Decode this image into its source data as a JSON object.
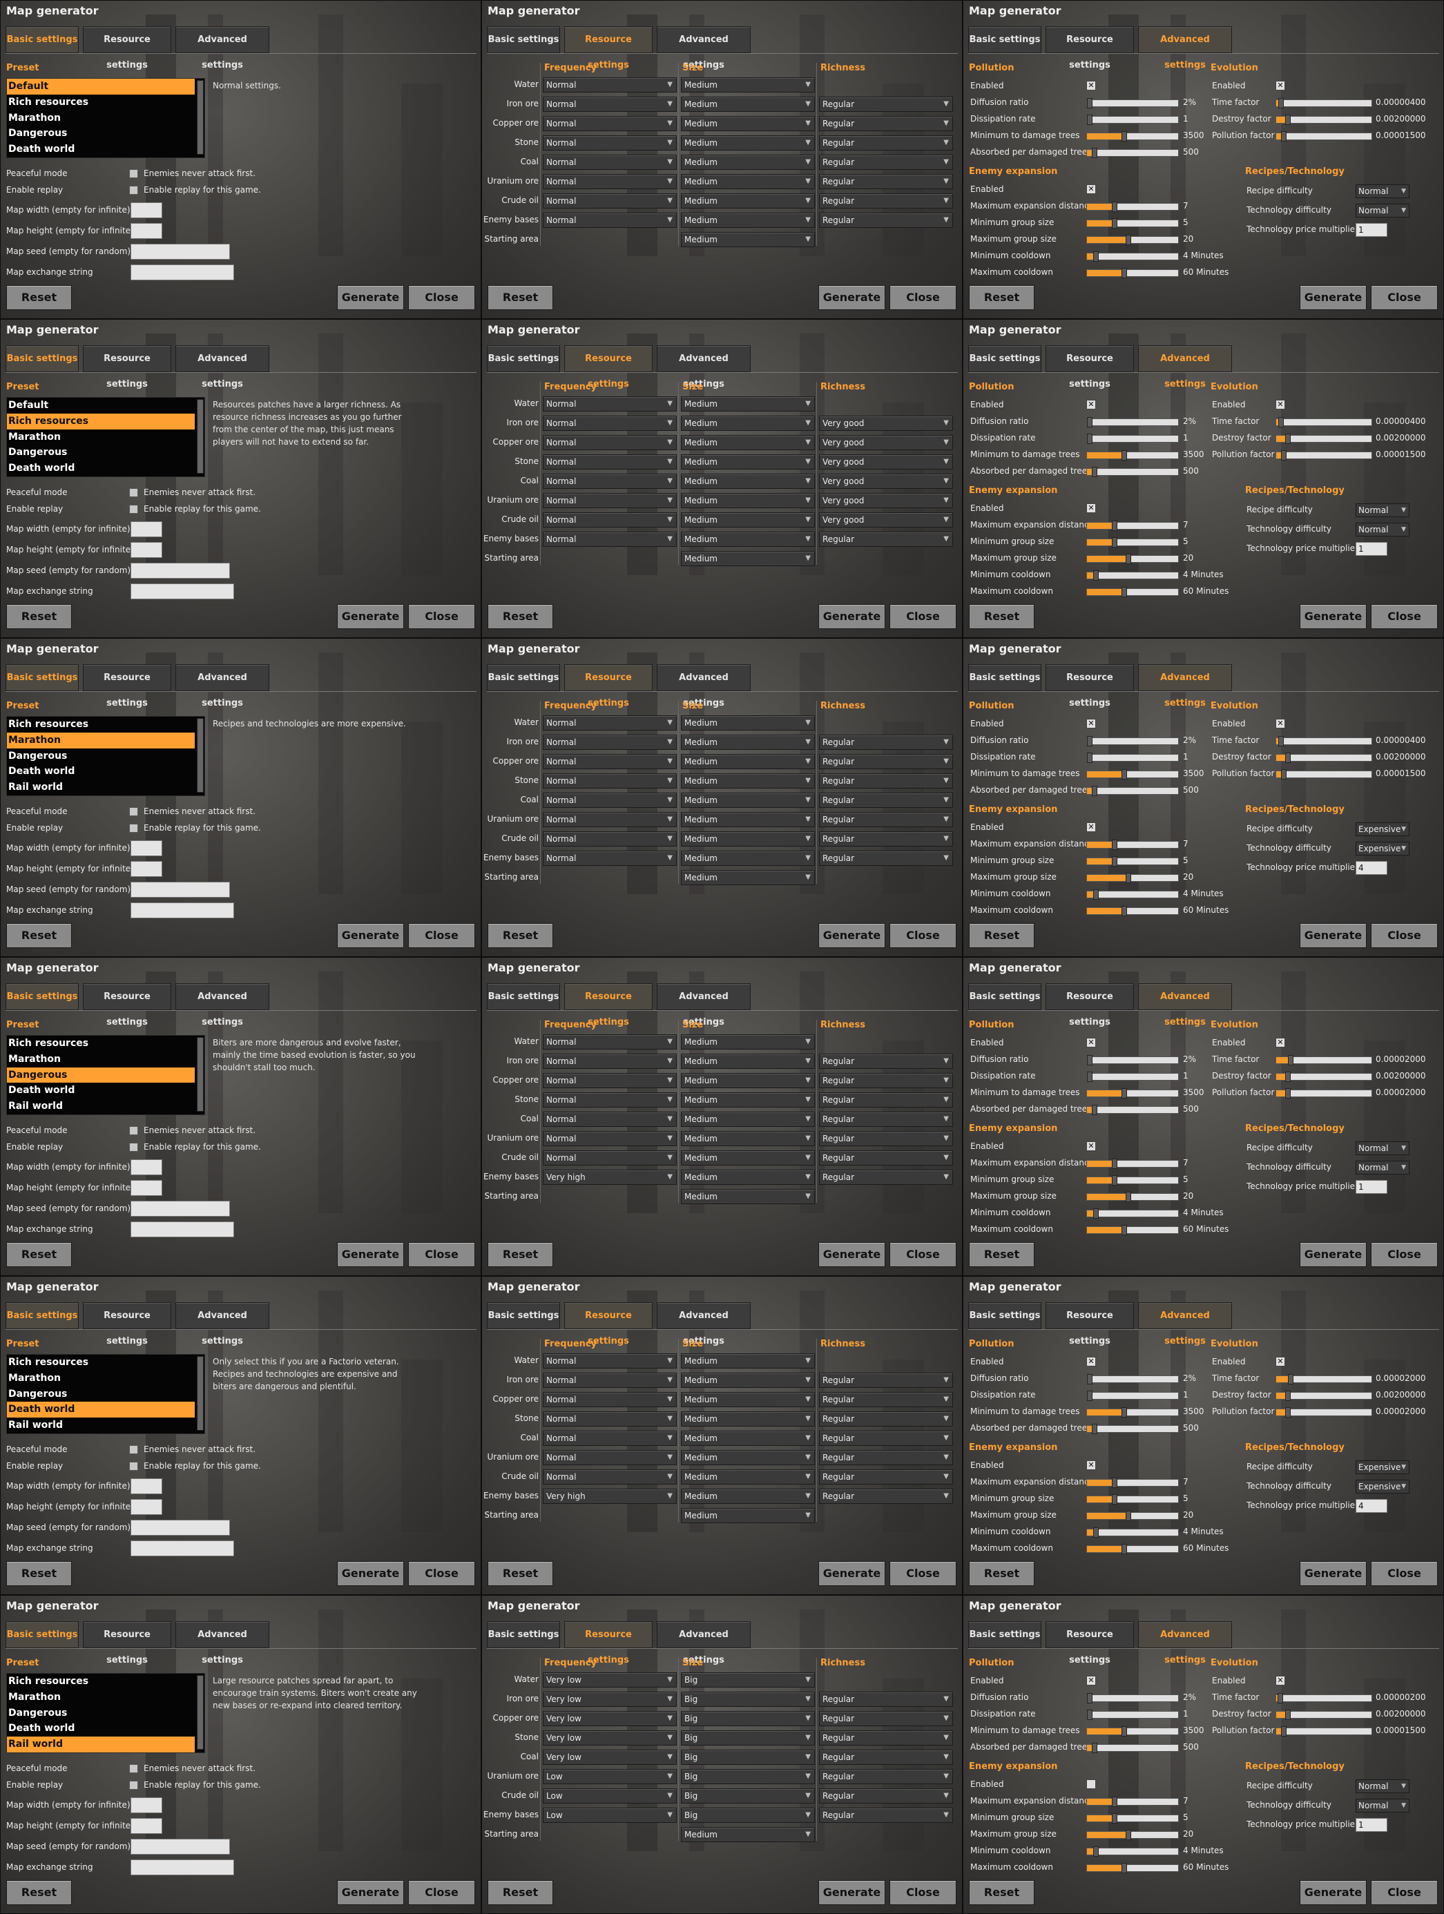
{
  "common": {
    "window_title": "Map generator",
    "tabs": [
      "Basic settings",
      "Resource settings",
      "Advanced settings"
    ],
    "buttons": {
      "reset": "Reset",
      "generate": "Generate",
      "close": "Close"
    },
    "basic": {
      "preset_heading": "Preset",
      "options": [
        {
          "label": "Peaceful mode",
          "check_label": "Enemies never attack first."
        },
        {
          "label": "Enable replay",
          "check_label": "Enable replay for this game."
        }
      ],
      "fields": [
        "Map width (empty for infinite):",
        "Map height (empty for infinite):",
        "Map seed (empty for random):",
        "Map exchange string"
      ]
    },
    "resource": {
      "headers": {
        "frequency": "Frequency",
        "size": "Size",
        "richness": "Richness"
      },
      "rows": [
        "Water",
        "Iron ore",
        "Copper ore",
        "Stone",
        "Coal",
        "Uranium ore",
        "Crude oil",
        "Enemy bases",
        "Starting area"
      ]
    },
    "advanced": {
      "pollution_heading": "Pollution",
      "pollution_labels": [
        "Enabled",
        "Diffusion ratio",
        "Dissipation rate",
        "Minimum to damage trees",
        "Absorbed per damaged tree"
      ],
      "expansion_heading": "Enemy expansion",
      "expansion_labels": [
        "Enabled",
        "Maximum expansion distance",
        "Minimum group size",
        "Maximum group size",
        "Minimum cooldown",
        "Maximum cooldown"
      ],
      "evolution_heading": "Evolution",
      "evolution_labels": [
        "Enabled",
        "Time factor",
        "Destroy factor",
        "Pollution factor"
      ],
      "recipes_heading": "Recipes/Technology",
      "recipes_labels": [
        "Recipe difficulty",
        "Technology difficulty",
        "Technology price multiplier"
      ]
    },
    "icons": {
      "checkmark": "x-checkbox-icon",
      "dropdown": "chevron-down-icon"
    },
    "colors": {
      "accent": "#ffa033",
      "panel": "#3c3c3c",
      "button": "#8a8a8a"
    }
  },
  "rows": [
    {
      "basic": {
        "presets": [
          "Default",
          "Rich resources",
          "Marathon",
          "Dangerous",
          "Death world"
        ],
        "selected": 0,
        "description": "Normal settings."
      },
      "resource": {
        "frequency": [
          "Normal",
          "Normal",
          "Normal",
          "Normal",
          "Normal",
          "Normal",
          "Normal",
          "Normal"
        ],
        "size": [
          "Medium",
          "Medium",
          "Medium",
          "Medium",
          "Medium",
          "Medium",
          "Medium",
          "Medium",
          "Medium"
        ],
        "richness": [
          "",
          "Regular",
          "Regular",
          "Regular",
          "Regular",
          "Regular",
          "Regular",
          "Regular"
        ]
      },
      "advanced": {
        "pollution_enabled": true,
        "pollution_values": [
          "2%",
          "1",
          "3500",
          "500"
        ],
        "pollution_levels": [
          0.03,
          0.03,
          0.4,
          0.08
        ],
        "expansion_enabled": true,
        "expansion_values": [
          "7",
          "5",
          "20",
          "4 Minutes",
          "60 Minutes"
        ],
        "expansion_levels": [
          0.3,
          0.3,
          0.45,
          0.1,
          0.4
        ],
        "evolution_enabled": true,
        "evolution_values": [
          "0.00000400",
          "0.00200000",
          "0.00001500"
        ],
        "evolution_levels": [
          0.05,
          0.12,
          0.08
        ],
        "recipe_difficulty": "Normal",
        "technology_difficulty": "Normal",
        "price_multiplier": "1"
      }
    },
    {
      "basic": {
        "presets": [
          "Default",
          "Rich resources",
          "Marathon",
          "Dangerous",
          "Death world"
        ],
        "selected": 1,
        "description": "Resources patches have a larger richness. As resource richness increases as you go further from the center of the map, this just means players will not have to extend so far."
      },
      "resource": {
        "frequency": [
          "Normal",
          "Normal",
          "Normal",
          "Normal",
          "Normal",
          "Normal",
          "Normal",
          "Normal"
        ],
        "size": [
          "Medium",
          "Medium",
          "Medium",
          "Medium",
          "Medium",
          "Medium",
          "Medium",
          "Medium",
          "Medium"
        ],
        "richness": [
          "",
          "Very good",
          "Very good",
          "Very good",
          "Very good",
          "Very good",
          "Very good",
          "Regular"
        ]
      },
      "advanced": {
        "pollution_enabled": true,
        "pollution_values": [
          "2%",
          "1",
          "3500",
          "500"
        ],
        "pollution_levels": [
          0.03,
          0.03,
          0.4,
          0.08
        ],
        "expansion_enabled": true,
        "expansion_values": [
          "7",
          "5",
          "20",
          "4 Minutes",
          "60 Minutes"
        ],
        "expansion_levels": [
          0.3,
          0.3,
          0.45,
          0.1,
          0.4
        ],
        "evolution_enabled": true,
        "evolution_values": [
          "0.00000400",
          "0.00200000",
          "0.00001500"
        ],
        "evolution_levels": [
          0.05,
          0.12,
          0.08
        ],
        "recipe_difficulty": "Normal",
        "technology_difficulty": "Normal",
        "price_multiplier": "1"
      }
    },
    {
      "basic": {
        "presets": [
          "Rich resources",
          "Marathon",
          "Dangerous",
          "Death world",
          "Rail world"
        ],
        "selected": 1,
        "description": "Recipes and technologies are more expensive."
      },
      "resource": {
        "frequency": [
          "Normal",
          "Normal",
          "Normal",
          "Normal",
          "Normal",
          "Normal",
          "Normal",
          "Normal"
        ],
        "size": [
          "Medium",
          "Medium",
          "Medium",
          "Medium",
          "Medium",
          "Medium",
          "Medium",
          "Medium",
          "Medium"
        ],
        "richness": [
          "",
          "Regular",
          "Regular",
          "Regular",
          "Regular",
          "Regular",
          "Regular",
          "Regular"
        ]
      },
      "advanced": {
        "pollution_enabled": true,
        "pollution_values": [
          "2%",
          "1",
          "3500",
          "500"
        ],
        "pollution_levels": [
          0.03,
          0.03,
          0.4,
          0.08
        ],
        "expansion_enabled": true,
        "expansion_values": [
          "7",
          "5",
          "20",
          "4 Minutes",
          "60 Minutes"
        ],
        "expansion_levels": [
          0.3,
          0.3,
          0.45,
          0.1,
          0.4
        ],
        "evolution_enabled": true,
        "evolution_values": [
          "0.00000400",
          "0.00200000",
          "0.00001500"
        ],
        "evolution_levels": [
          0.05,
          0.12,
          0.08
        ],
        "recipe_difficulty": "Expensive",
        "technology_difficulty": "Expensive",
        "price_multiplier": "4"
      }
    },
    {
      "basic": {
        "presets": [
          "Rich resources",
          "Marathon",
          "Dangerous",
          "Death world",
          "Rail world"
        ],
        "selected": 2,
        "description": "Biters are more dangerous and evolve faster, mainly the time based evolution is faster, so you shouldn't stall too much."
      },
      "resource": {
        "frequency": [
          "Normal",
          "Normal",
          "Normal",
          "Normal",
          "Normal",
          "Normal",
          "Normal",
          "Very high"
        ],
        "size": [
          "Medium",
          "Medium",
          "Medium",
          "Medium",
          "Medium",
          "Medium",
          "Medium",
          "Medium",
          "Medium"
        ],
        "richness": [
          "",
          "Regular",
          "Regular",
          "Regular",
          "Regular",
          "Regular",
          "Regular",
          "Regular"
        ]
      },
      "advanced": {
        "pollution_enabled": true,
        "pollution_values": [
          "2%",
          "1",
          "3500",
          "500"
        ],
        "pollution_levels": [
          0.03,
          0.03,
          0.4,
          0.08
        ],
        "expansion_enabled": true,
        "expansion_values": [
          "7",
          "5",
          "20",
          "4 Minutes",
          "60 Minutes"
        ],
        "expansion_levels": [
          0.3,
          0.3,
          0.45,
          0.1,
          0.4
        ],
        "evolution_enabled": true,
        "evolution_values": [
          "0.00002000",
          "0.00200000",
          "0.00002000"
        ],
        "evolution_levels": [
          0.15,
          0.12,
          0.12
        ],
        "recipe_difficulty": "Normal",
        "technology_difficulty": "Normal",
        "price_multiplier": "1"
      }
    },
    {
      "basic": {
        "presets": [
          "Rich resources",
          "Marathon",
          "Dangerous",
          "Death world",
          "Rail world"
        ],
        "selected": 3,
        "description": "Only select this if you are a Factorio veteran. Recipes and technologies are expensive and biters are dangerous and plentiful."
      },
      "resource": {
        "frequency": [
          "Normal",
          "Normal",
          "Normal",
          "Normal",
          "Normal",
          "Normal",
          "Normal",
          "Very high"
        ],
        "size": [
          "Medium",
          "Medium",
          "Medium",
          "Medium",
          "Medium",
          "Medium",
          "Medium",
          "Medium",
          "Medium"
        ],
        "richness": [
          "",
          "Regular",
          "Regular",
          "Regular",
          "Regular",
          "Regular",
          "Regular",
          "Regular"
        ]
      },
      "advanced": {
        "pollution_enabled": true,
        "pollution_values": [
          "2%",
          "1",
          "3500",
          "500"
        ],
        "pollution_levels": [
          0.03,
          0.03,
          0.4,
          0.08
        ],
        "expansion_enabled": true,
        "expansion_values": [
          "7",
          "5",
          "20",
          "4 Minutes",
          "60 Minutes"
        ],
        "expansion_levels": [
          0.3,
          0.3,
          0.45,
          0.1,
          0.4
        ],
        "evolution_enabled": true,
        "evolution_values": [
          "0.00002000",
          "0.00200000",
          "0.00002000"
        ],
        "evolution_levels": [
          0.15,
          0.12,
          0.12
        ],
        "recipe_difficulty": "Expensive",
        "technology_difficulty": "Expensive",
        "price_multiplier": "4"
      }
    },
    {
      "basic": {
        "presets": [
          "Rich resources",
          "Marathon",
          "Dangerous",
          "Death world",
          "Rail world"
        ],
        "selected": 4,
        "description": "Large resource patches spread far apart, to encourage train systems. Biters won't create any new bases or re-expand into cleared territory."
      },
      "resource": {
        "frequency": [
          "Very low",
          "Very low",
          "Very low",
          "Very low",
          "Very low",
          "Low",
          "Low",
          "Low"
        ],
        "size": [
          "Big",
          "Big",
          "Big",
          "Big",
          "Big",
          "Big",
          "Big",
          "Big",
          "Medium"
        ],
        "richness": [
          "",
          "Regular",
          "Regular",
          "Regular",
          "Regular",
          "Regular",
          "Regular",
          "Regular"
        ]
      },
      "advanced": {
        "pollution_enabled": true,
        "pollution_values": [
          "2%",
          "1",
          "3500",
          "500"
        ],
        "pollution_levels": [
          0.03,
          0.03,
          0.4,
          0.08
        ],
        "expansion_enabled": false,
        "expansion_values": [
          "7",
          "5",
          "20",
          "4 Minutes",
          "60 Minutes"
        ],
        "expansion_levels": [
          0.3,
          0.3,
          0.45,
          0.1,
          0.4
        ],
        "evolution_enabled": true,
        "evolution_values": [
          "0.00000200",
          "0.00200000",
          "0.00001500"
        ],
        "evolution_levels": [
          0.04,
          0.12,
          0.08
        ],
        "recipe_difficulty": "Normal",
        "technology_difficulty": "Normal",
        "price_multiplier": "1"
      }
    }
  ]
}
